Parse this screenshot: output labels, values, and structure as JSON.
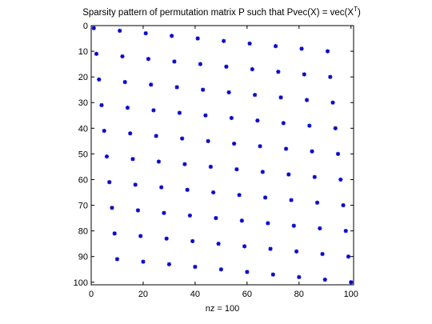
{
  "chart_data": {
    "type": "scatter",
    "title_main": "Sparsity pattern of permutation matrix P such that Pvec(X) = vec(X",
    "title_sup": "T",
    "title_end": ")",
    "xlabel": "nz = 100",
    "ylabel": "",
    "xlim": [
      0,
      101
    ],
    "ylim": [
      0,
      101
    ],
    "y_axis_reversed": true,
    "x_ticks": [
      "0",
      "20",
      "40",
      "60",
      "80",
      "100"
    ],
    "y_ticks": [
      "0",
      "10",
      "20",
      "30",
      "40",
      "50",
      "60",
      "70",
      "80",
      "90",
      "100"
    ],
    "marker": "*",
    "marker_color": "#0000cc",
    "grid": false,
    "legend": "none",
    "matrix_order": 10,
    "nnz": 100
  }
}
